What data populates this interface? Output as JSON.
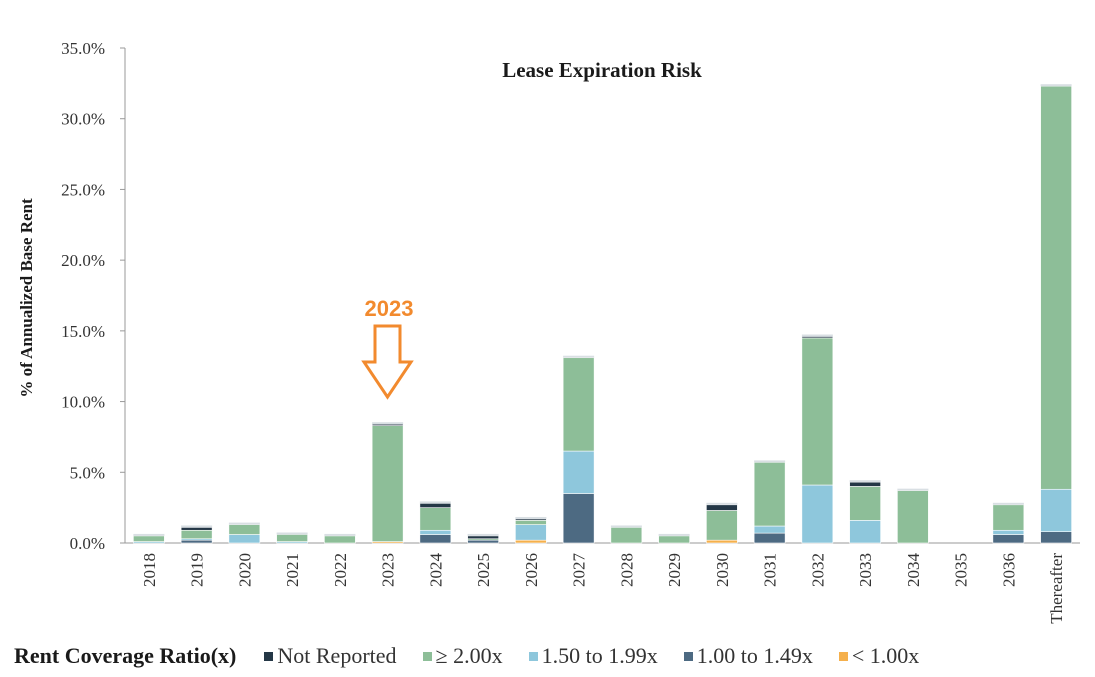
{
  "chart_data": {
    "type": "stacked-bar",
    "title": "Lease Expiration Risk",
    "ylabel": "% of Annualized Base Rent",
    "xlabel": "",
    "ylim": [
      0,
      35
    ],
    "yticks": [
      "0.0%",
      "5.0%",
      "10.0%",
      "15.0%",
      "20.0%",
      "25.0%",
      "30.0%",
      "35.0%"
    ],
    "categories": [
      "2018",
      "2019",
      "2020",
      "2021",
      "2022",
      "2023",
      "2024",
      "2025",
      "2026",
      "2027",
      "2028",
      "2029",
      "2030",
      "2031",
      "2032",
      "2033",
      "2034",
      "2035",
      "2036",
      "Thereafter"
    ],
    "series": [
      {
        "name": "< 1.00x",
        "color": "#f5b04c",
        "values": [
          0,
          0,
          0,
          0,
          0,
          0.1,
          0,
          0,
          0.2,
          0,
          0,
          0,
          0.2,
          0,
          0,
          0,
          0,
          0,
          0,
          0
        ]
      },
      {
        "name": "1.00 to 1.49x",
        "color": "#4d6a82",
        "values": [
          0,
          0.2,
          0,
          0,
          0,
          0,
          0.6,
          0.2,
          0,
          3.5,
          0,
          0,
          0,
          0.7,
          0,
          0,
          0,
          0,
          0.6,
          0.8
        ]
      },
      {
        "name": "1.50 to 1.99x",
        "color": "#8ec7dc",
        "values": [
          0.1,
          0.1,
          0.6,
          0.1,
          0,
          0,
          0.3,
          0,
          1.1,
          3.0,
          0,
          0,
          0,
          0.5,
          4.1,
          1.6,
          0,
          0,
          0.3,
          3.0
        ]
      },
      {
        "name": "≥ 2.00x",
        "color": "#8dbe98",
        "values": [
          0.4,
          0.6,
          0.7,
          0.5,
          0.5,
          8.2,
          1.6,
          0.1,
          0.3,
          6.6,
          1.1,
          0.5,
          2.1,
          4.5,
          10.4,
          2.4,
          3.7,
          0,
          1.8,
          28.5
        ]
      },
      {
        "name": "Not Reported",
        "color": "#243746",
        "values": [
          0,
          0.2,
          0,
          0,
          0,
          0.1,
          0.3,
          0.2,
          0.1,
          0,
          0,
          0,
          0.4,
          0,
          0.1,
          0.3,
          0,
          0,
          0,
          0
        ]
      }
    ],
    "annotation": {
      "label": "2023",
      "category": "2023",
      "color": "#f28a2e"
    }
  },
  "legend": {
    "title": "Rent Coverage Ratio(x)",
    "items": [
      {
        "label": "Not Reported",
        "color": "#243746"
      },
      {
        "label": "≥ 2.00x",
        "color": "#8dbe98"
      },
      {
        "label": "1.50 to 1.99x",
        "color": "#8ec7dc"
      },
      {
        "label": "1.00 to 1.49x",
        "color": "#4d6a82"
      },
      {
        "label": "< 1.00x",
        "color": "#f5b04c"
      }
    ]
  }
}
